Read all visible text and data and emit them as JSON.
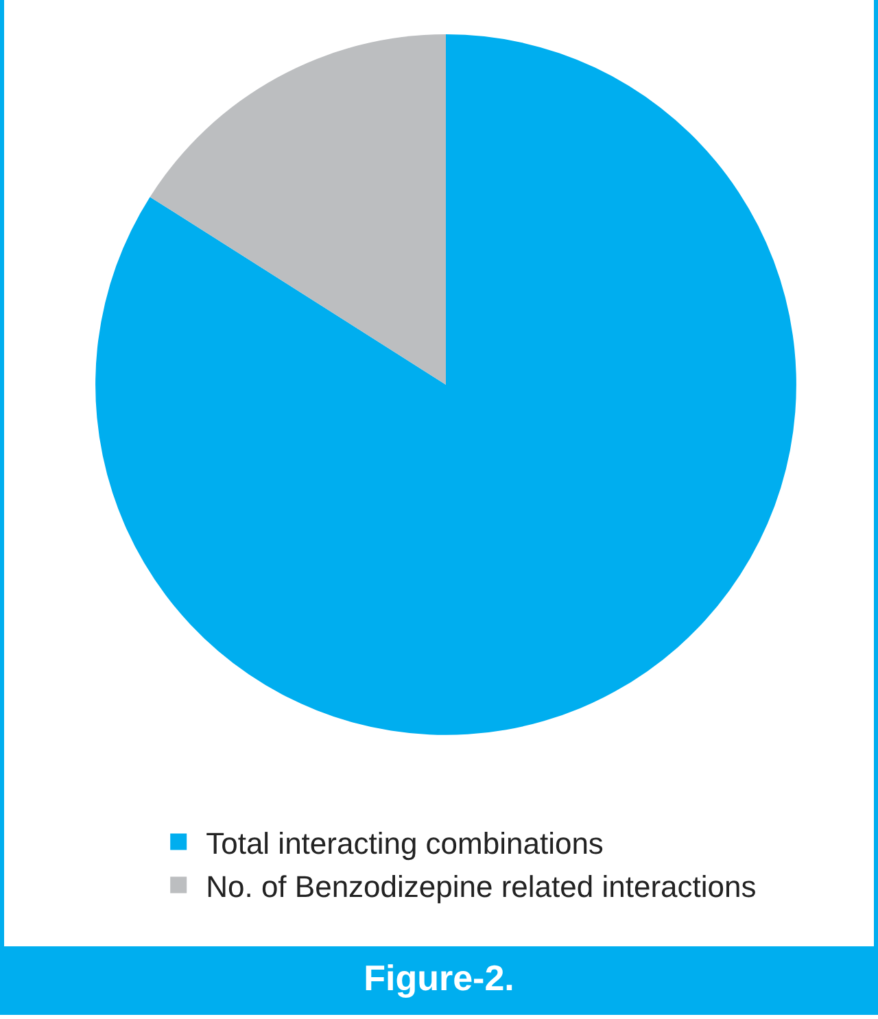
{
  "chart_data": {
    "type": "pie",
    "title": "Figure-2.",
    "categories": [
      "Total interacting combinations",
      "No. of Benzodizepine related interactions"
    ],
    "values": [
      84,
      16
    ],
    "colors": [
      "#00aeef",
      "#bcbec0"
    ],
    "legend": "bottom"
  }
}
